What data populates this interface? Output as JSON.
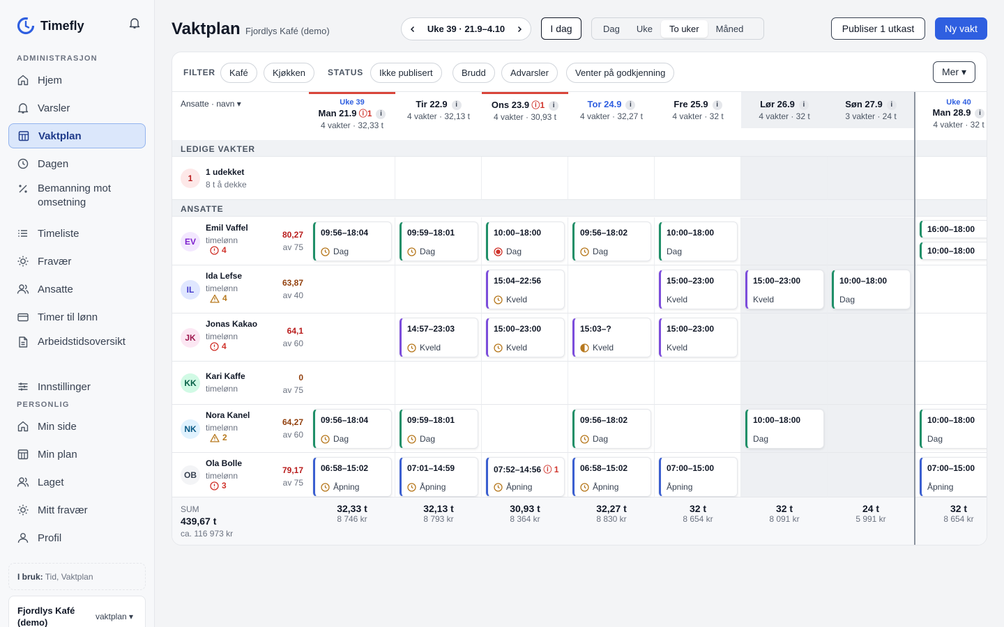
{
  "app": {
    "name": "Timefly"
  },
  "sidebar": {
    "admin_label": "ADMINISTRASJON",
    "admin_items": [
      {
        "label": "Hjem",
        "icon": "home-icon"
      },
      {
        "label": "Varsler",
        "icon": "bell-icon"
      },
      {
        "label": "Vaktplan",
        "icon": "calendar-icon",
        "active": true
      },
      {
        "label": "Dagen",
        "icon": "clock-icon"
      },
      {
        "label": "Bemanning mot omsetning",
        "icon": "percent-icon"
      },
      {
        "label": "Timeliste",
        "icon": "list-icon"
      },
      {
        "label": "Fravær",
        "icon": "sun-icon"
      },
      {
        "label": "Ansatte",
        "icon": "users-icon"
      },
      {
        "label": "Timer til lønn",
        "icon": "wallet-icon"
      },
      {
        "label": "Arbeidstidsoversikt",
        "icon": "document-icon"
      },
      {
        "label": "Innstillinger",
        "icon": "sliders-icon"
      }
    ],
    "personal_label": "PERSONLIG",
    "personal_items": [
      {
        "label": "Min side",
        "icon": "home-icon"
      },
      {
        "label": "Min plan",
        "icon": "calendar-icon"
      },
      {
        "label": "Laget",
        "icon": "users-icon"
      },
      {
        "label": "Mitt fravær",
        "icon": "sun-icon"
      },
      {
        "label": "Profil",
        "icon": "user-icon"
      }
    ],
    "in_use_label": "I bruk:",
    "in_use_value": "Tid, Vaktplan",
    "org_name": "Fjordlys Kafé (demo)",
    "org_select": "vaktplan ▾"
  },
  "header": {
    "title": "Vaktplan",
    "subtitle": "Fjordlys Kafé (demo)",
    "week_label": "Uke 39 · 21.9–4.10",
    "today_button": "I dag",
    "views": [
      "Dag",
      "Uke",
      "To uker",
      "Måned"
    ],
    "active_view": "To uker",
    "publish_button": "Publiser 1 utkast",
    "new_shift_button": "Ny vakt"
  },
  "filters": {
    "filter_label": "FILTER",
    "filter_chips": [
      "Kafé",
      "Kjøkken"
    ],
    "status_label": "STATUS",
    "status_chips": [
      "Ikke publisert",
      "Brudd",
      "Advarsler",
      "Venter på godkjenning"
    ],
    "more_button": "Mer ▾"
  },
  "grid": {
    "sort_label": "Ansatte · navn ▾",
    "days": [
      {
        "week": "Uke 39",
        "label": "Man 21.9",
        "warn": "1",
        "info": "i",
        "summary": "4 vakter · 32,33 t",
        "weekend": false,
        "flag": true
      },
      {
        "week": "",
        "label": "Tir 22.9",
        "warn": "",
        "info": "i",
        "summary": "4 vakter · 32,13 t",
        "weekend": false,
        "flag": false
      },
      {
        "week": "",
        "label": "Ons 23.9",
        "warn": "1",
        "info": "i",
        "summary": "4 vakter · 30,93 t",
        "weekend": false,
        "flag": true
      },
      {
        "week": "",
        "label": "Tor 24.9",
        "warn": "",
        "info": "i",
        "summary": "4 vakter · 32,27 t",
        "weekend": false,
        "flag": false,
        "today": true
      },
      {
        "week": "",
        "label": "Fre 25.9",
        "warn": "",
        "info": "i",
        "summary": "4 vakter · 32 t",
        "weekend": false,
        "flag": false
      },
      {
        "week": "",
        "label": "Lør 26.9",
        "warn": "",
        "info": "i",
        "summary": "4 vakter · 32 t",
        "weekend": true,
        "flag": false
      },
      {
        "week": "",
        "label": "Søn 27.9",
        "warn": "",
        "info": "i",
        "summary": "3 vakter · 24 t",
        "weekend": true,
        "flag": false
      },
      {
        "week": "Uke 40",
        "label": "Man 28.9",
        "warn": "",
        "info": "i",
        "summary": "4 vakter · 32 t",
        "weekend": false,
        "flag": false
      }
    ],
    "open_section": "LEDIGE VAKTER",
    "open_count": "1",
    "open_title": "1 udekket",
    "open_sub": "8 t å dekke",
    "employees_section": "ANSATTE",
    "employees": [
      {
        "initials": "EV",
        "name": "Emil Vaffel",
        "type": "timelønn",
        "warn_count": "4",
        "warn_kind": "error",
        "hours": "80,27",
        "of": "av 75",
        "hours_color": "#b91c1c",
        "avatar_bg": "#f3e8ff",
        "avatar_fg": "#7e22ce"
      },
      {
        "initials": "IL",
        "name": "Ida Lefse",
        "type": "timelønn",
        "warn_count": "4",
        "warn_kind": "warning",
        "hours": "63,87",
        "of": "av 40",
        "hours_color": "#92400e",
        "avatar_bg": "#e0e7ff",
        "avatar_fg": "#4338ca"
      },
      {
        "initials": "JK",
        "name": "Jonas Kakao",
        "type": "timelønn",
        "warn_count": "4",
        "warn_kind": "error",
        "hours": "64,1",
        "of": "av 60",
        "hours_color": "#b91c1c",
        "avatar_bg": "#fce7f3",
        "avatar_fg": "#9d174d"
      },
      {
        "initials": "KK",
        "name": "Kari Kaffe",
        "type": "timelønn",
        "warn_count": "",
        "warn_kind": "",
        "hours": "0",
        "of": "av 75",
        "hours_color": "#92400e",
        "avatar_bg": "#d1fae5",
        "avatar_fg": "#065f46"
      },
      {
        "initials": "NK",
        "name": "Nora Kanel",
        "type": "timelønn",
        "warn_count": "2",
        "warn_kind": "warning",
        "hours": "64,27",
        "of": "av 60",
        "hours_color": "#92400e",
        "avatar_bg": "#e0f2fe",
        "avatar_fg": "#075985"
      },
      {
        "initials": "OB",
        "name": "Ola Bolle",
        "type": "timelønn",
        "warn_count": "3",
        "warn_kind": "error",
        "hours": "79,17",
        "of": "av 75",
        "hours_color": "#b91c1c",
        "avatar_bg": "#f3f4f6",
        "avatar_fg": "#374151"
      }
    ],
    "shifts": [
      {
        "row": 0,
        "day": 0,
        "time": "09:56–18:04",
        "name": "Dag",
        "kind": "dag",
        "status": "clock"
      },
      {
        "row": 0,
        "day": 1,
        "time": "09:59–18:01",
        "name": "Dag",
        "kind": "dag",
        "status": "clock"
      },
      {
        "row": 0,
        "day": 2,
        "time": "10:00–18:00",
        "name": "Dag",
        "kind": "dag",
        "status": "target"
      },
      {
        "row": 0,
        "day": 3,
        "time": "09:56–18:02",
        "name": "Dag",
        "kind": "dag",
        "status": "clock"
      },
      {
        "row": 0,
        "day": 4,
        "time": "10:00–18:00",
        "name": "Dag",
        "kind": "dag",
        "status": ""
      },
      {
        "row": 0,
        "day": 7,
        "time": "16:00–18:00",
        "name": "",
        "kind": "dag",
        "status": "",
        "small": true,
        "slot": 0
      },
      {
        "row": 0,
        "day": 7,
        "time": "10:00–18:00",
        "name": "",
        "kind": "dag",
        "status": "",
        "small": true,
        "slot": 1
      },
      {
        "row": 1,
        "day": 2,
        "time": "15:04–22:56",
        "name": "Kveld",
        "kind": "kveld",
        "status": "clock"
      },
      {
        "row": 1,
        "day": 4,
        "time": "15:00–23:00",
        "name": "Kveld",
        "kind": "kveld",
        "status": ""
      },
      {
        "row": 1,
        "day": 5,
        "time": "15:00–23:00",
        "name": "Kveld",
        "kind": "kveld",
        "status": ""
      },
      {
        "row": 1,
        "day": 6,
        "time": "10:00–18:00",
        "name": "Dag",
        "kind": "dag",
        "status": ""
      },
      {
        "row": 2,
        "day": 1,
        "time": "14:57–23:03",
        "name": "Kveld",
        "kind": "kveld",
        "status": "clock"
      },
      {
        "row": 2,
        "day": 2,
        "time": "15:00–23:00",
        "name": "Kveld",
        "kind": "kveld",
        "status": "clock"
      },
      {
        "row": 2,
        "day": 3,
        "time": "15:03–?",
        "name": "Kveld",
        "kind": "kveld",
        "status": "half"
      },
      {
        "row": 2,
        "day": 4,
        "time": "15:00–23:00",
        "name": "Kveld",
        "kind": "kveld",
        "status": ""
      },
      {
        "row": 4,
        "day": 0,
        "time": "09:56–18:04",
        "name": "Dag",
        "kind": "dag",
        "status": "clock"
      },
      {
        "row": 4,
        "day": 1,
        "time": "09:59–18:01",
        "name": "Dag",
        "kind": "dag",
        "status": "clock"
      },
      {
        "row": 4,
        "day": 3,
        "time": "09:56–18:02",
        "name": "Dag",
        "kind": "dag",
        "status": "clock"
      },
      {
        "row": 4,
        "day": 5,
        "time": "10:00–18:00",
        "name": "Dag",
        "kind": "dag",
        "status": ""
      },
      {
        "row": 4,
        "day": 7,
        "time": "10:00–18:00",
        "name": "Dag",
        "kind": "dag",
        "status": ""
      },
      {
        "row": 5,
        "day": 0,
        "time": "06:58–15:02",
        "name": "Åpning",
        "kind": "apning",
        "status": "clock"
      },
      {
        "row": 5,
        "day": 1,
        "time": "07:01–14:59",
        "name": "Åpning",
        "kind": "apning",
        "status": "clock"
      },
      {
        "row": 5,
        "day": 2,
        "time": "07:52–14:56",
        "name": "Åpning",
        "kind": "apning",
        "status": "clock",
        "warn": "1"
      },
      {
        "row": 5,
        "day": 3,
        "time": "06:58–15:02",
        "name": "Åpning",
        "kind": "apning",
        "status": "clock"
      },
      {
        "row": 5,
        "day": 4,
        "time": "07:00–15:00",
        "name": "Åpning",
        "kind": "apning",
        "status": ""
      },
      {
        "row": 5,
        "day": 7,
        "time": "07:00–15:00",
        "name": "Åpning",
        "kind": "apning",
        "status": ""
      }
    ],
    "sum_label": "SUM",
    "sum_total": "439,67 t",
    "sum_total_kr": "ca. 116 973 kr",
    "sums": [
      {
        "hours": "32,33 t",
        "kr": "8 746 kr"
      },
      {
        "hours": "32,13 t",
        "kr": "8 793 kr"
      },
      {
        "hours": "30,93 t",
        "kr": "8 364 kr"
      },
      {
        "hours": "32,27 t",
        "kr": "8 830 kr"
      },
      {
        "hours": "32 t",
        "kr": "8 654 kr"
      },
      {
        "hours": "32 t",
        "kr": "8 091 kr"
      },
      {
        "hours": "24 t",
        "kr": "5 991 kr"
      },
      {
        "hours": "32 t",
        "kr": "8 654 kr"
      }
    ]
  },
  "colors": {
    "accent": "#2f5fe0",
    "dag": "#1f8f68",
    "kveld": "#7c4ddb",
    "apning": "#3b5fd0",
    "error": "#d0342c",
    "warning": "#b7791f"
  }
}
